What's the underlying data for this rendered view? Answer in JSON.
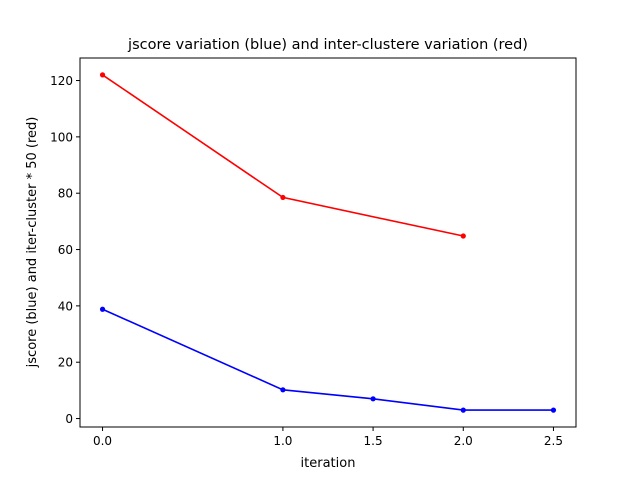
{
  "chart_data": {
    "type": "line",
    "title": "jscore variation (blue) and inter-clustere variation (red)",
    "xlabel": "iteration",
    "ylabel": "jscore (blue) and iter-cluster * 50 (red)",
    "x_ticks": [
      0.0,
      1.0,
      1.5,
      2.0,
      2.5
    ],
    "x_tick_labels": [
      "0.0",
      "1.0",
      "1.5",
      "2.0",
      "2.5"
    ],
    "y_ticks": [
      0,
      20,
      40,
      60,
      80,
      100,
      120
    ],
    "y_tick_labels": [
      "0",
      "20",
      "40",
      "60",
      "80",
      "100",
      "120"
    ],
    "xlim": [
      -0.125,
      2.625
    ],
    "ylim": [
      -3,
      128
    ],
    "grid": false,
    "series": [
      {
        "color": "#ff0000",
        "x": [
          0.0,
          1.0,
          2.0
        ],
        "y": [
          122,
          78.5,
          64.8
        ]
      },
      {
        "color": "#0000ff",
        "x": [
          0.0,
          1.0,
          1.5,
          2.0,
          2.5
        ],
        "y": [
          38.8,
          10.2,
          7.0,
          3.0,
          3.0
        ]
      }
    ]
  }
}
